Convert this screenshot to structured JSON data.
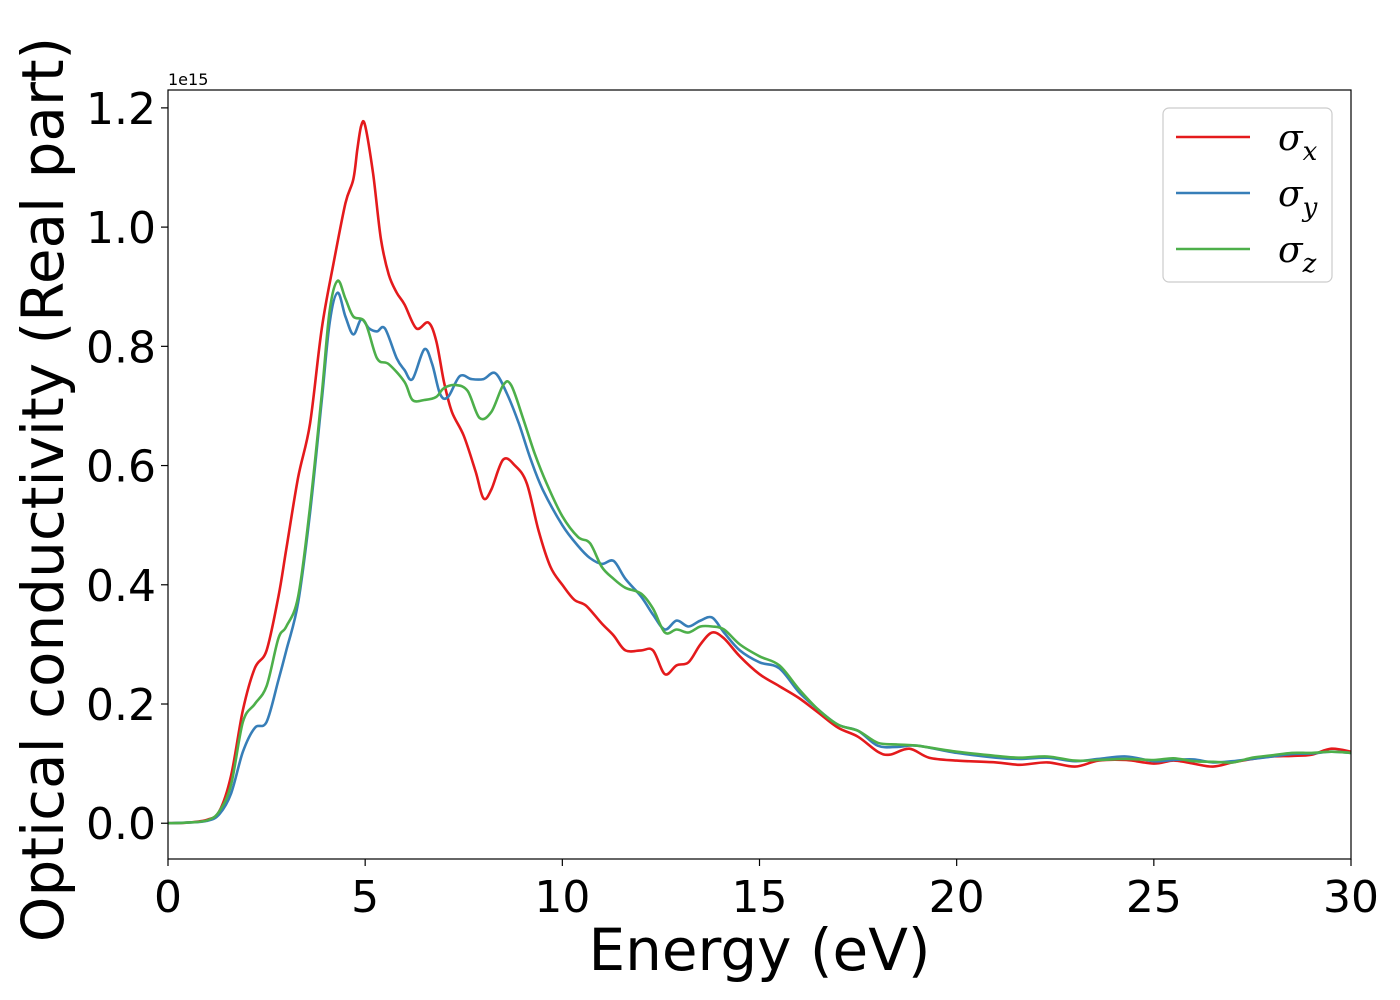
{
  "chart_data": {
    "type": "line",
    "xlabel": "Energy (eV)",
    "ylabel": "Optical conductivity (Real part)",
    "y_offset_text": "1e15",
    "xlim": [
      0,
      30
    ],
    "ylim": [
      -0.06,
      1.23
    ],
    "x_ticks": [
      0,
      5,
      10,
      15,
      20,
      25,
      30
    ],
    "x_tick_labels": [
      "0",
      "5",
      "10",
      "15",
      "20",
      "25",
      "30"
    ],
    "y_ticks": [
      0.0,
      0.2,
      0.4,
      0.6,
      0.8,
      1.0,
      1.2
    ],
    "y_tick_labels": [
      "0.0",
      "0.2",
      "0.4",
      "0.6",
      "0.8",
      "1.0",
      "1.2"
    ],
    "grid": false,
    "legend_position": "top-right",
    "series": [
      {
        "name": "σ_x",
        "legend_base": "σ",
        "legend_sub": "x",
        "color": "#e41a1c",
        "points": [
          [
            0,
            0
          ],
          [
            0.5,
            0.001
          ],
          [
            1.0,
            0.006
          ],
          [
            1.3,
            0.02
          ],
          [
            1.6,
            0.08
          ],
          [
            1.9,
            0.19
          ],
          [
            2.2,
            0.26
          ],
          [
            2.5,
            0.29
          ],
          [
            2.8,
            0.38
          ],
          [
            3.0,
            0.46
          ],
          [
            3.3,
            0.58
          ],
          [
            3.6,
            0.67
          ],
          [
            3.9,
            0.83
          ],
          [
            4.2,
            0.94
          ],
          [
            4.5,
            1.04
          ],
          [
            4.7,
            1.08
          ],
          [
            4.8,
            1.13
          ],
          [
            4.9,
            1.17
          ],
          [
            5.0,
            1.17
          ],
          [
            5.2,
            1.09
          ],
          [
            5.4,
            0.98
          ],
          [
            5.6,
            0.92
          ],
          [
            5.8,
            0.89
          ],
          [
            6.0,
            0.87
          ],
          [
            6.3,
            0.83
          ],
          [
            6.6,
            0.84
          ],
          [
            6.8,
            0.81
          ],
          [
            7.0,
            0.74
          ],
          [
            7.2,
            0.69
          ],
          [
            7.5,
            0.65
          ],
          [
            7.8,
            0.59
          ],
          [
            8.0,
            0.545
          ],
          [
            8.2,
            0.56
          ],
          [
            8.5,
            0.61
          ],
          [
            8.8,
            0.6
          ],
          [
            9.1,
            0.57
          ],
          [
            9.4,
            0.49
          ],
          [
            9.7,
            0.43
          ],
          [
            10.0,
            0.4
          ],
          [
            10.3,
            0.375
          ],
          [
            10.6,
            0.365
          ],
          [
            11.0,
            0.335
          ],
          [
            11.3,
            0.315
          ],
          [
            11.6,
            0.29
          ],
          [
            12.0,
            0.29
          ],
          [
            12.3,
            0.29
          ],
          [
            12.6,
            0.25
          ],
          [
            12.9,
            0.265
          ],
          [
            13.2,
            0.27
          ],
          [
            13.5,
            0.3
          ],
          [
            13.8,
            0.32
          ],
          [
            14.1,
            0.31
          ],
          [
            14.5,
            0.28
          ],
          [
            15.0,
            0.25
          ],
          [
            15.5,
            0.23
          ],
          [
            16.0,
            0.21
          ],
          [
            16.5,
            0.185
          ],
          [
            17.0,
            0.16
          ],
          [
            17.5,
            0.145
          ],
          [
            18.0,
            0.12
          ],
          [
            18.3,
            0.115
          ],
          [
            18.8,
            0.125
          ],
          [
            19.3,
            0.11
          ],
          [
            20.0,
            0.105
          ],
          [
            21.0,
            0.102
          ],
          [
            21.6,
            0.098
          ],
          [
            22.3,
            0.102
          ],
          [
            23.0,
            0.095
          ],
          [
            23.6,
            0.105
          ],
          [
            24.3,
            0.106
          ],
          [
            25.0,
            0.1
          ],
          [
            25.5,
            0.105
          ],
          [
            26.0,
            0.1
          ],
          [
            26.5,
            0.095
          ],
          [
            27.0,
            0.102
          ],
          [
            27.5,
            0.108
          ],
          [
            28.0,
            0.112
          ],
          [
            28.5,
            0.113
          ],
          [
            29.0,
            0.115
          ],
          [
            29.5,
            0.125
          ],
          [
            30.0,
            0.12
          ]
        ]
      },
      {
        "name": "σ_y",
        "legend_base": "σ",
        "legend_sub": "y",
        "color": "#377eb8",
        "points": [
          [
            0,
            0
          ],
          [
            0.5,
            0.001
          ],
          [
            1.0,
            0.004
          ],
          [
            1.3,
            0.015
          ],
          [
            1.6,
            0.05
          ],
          [
            1.9,
            0.12
          ],
          [
            2.2,
            0.16
          ],
          [
            2.5,
            0.17
          ],
          [
            2.8,
            0.24
          ],
          [
            3.0,
            0.29
          ],
          [
            3.3,
            0.37
          ],
          [
            3.6,
            0.52
          ],
          [
            3.9,
            0.71
          ],
          [
            4.1,
            0.84
          ],
          [
            4.3,
            0.89
          ],
          [
            4.5,
            0.85
          ],
          [
            4.7,
            0.82
          ],
          [
            4.9,
            0.845
          ],
          [
            5.1,
            0.83
          ],
          [
            5.3,
            0.825
          ],
          [
            5.5,
            0.83
          ],
          [
            5.8,
            0.78
          ],
          [
            6.0,
            0.76
          ],
          [
            6.2,
            0.745
          ],
          [
            6.5,
            0.795
          ],
          [
            6.7,
            0.77
          ],
          [
            6.9,
            0.72
          ],
          [
            7.1,
            0.715
          ],
          [
            7.4,
            0.75
          ],
          [
            7.7,
            0.745
          ],
          [
            8.0,
            0.745
          ],
          [
            8.3,
            0.755
          ],
          [
            8.6,
            0.72
          ],
          [
            8.9,
            0.67
          ],
          [
            9.2,
            0.61
          ],
          [
            9.5,
            0.56
          ],
          [
            10.0,
            0.5
          ],
          [
            10.4,
            0.465
          ],
          [
            10.7,
            0.445
          ],
          [
            11.0,
            0.435
          ],
          [
            11.3,
            0.44
          ],
          [
            11.6,
            0.41
          ],
          [
            12.0,
            0.38
          ],
          [
            12.3,
            0.35
          ],
          [
            12.6,
            0.325
          ],
          [
            12.9,
            0.34
          ],
          [
            13.2,
            0.33
          ],
          [
            13.5,
            0.34
          ],
          [
            13.8,
            0.345
          ],
          [
            14.1,
            0.32
          ],
          [
            14.5,
            0.29
          ],
          [
            15.0,
            0.27
          ],
          [
            15.5,
            0.26
          ],
          [
            16.0,
            0.22
          ],
          [
            16.5,
            0.19
          ],
          [
            17.0,
            0.165
          ],
          [
            17.5,
            0.155
          ],
          [
            18.0,
            0.13
          ],
          [
            18.5,
            0.128
          ],
          [
            19.0,
            0.13
          ],
          [
            20.0,
            0.118
          ],
          [
            21.0,
            0.11
          ],
          [
            21.6,
            0.108
          ],
          [
            22.3,
            0.11
          ],
          [
            23.0,
            0.104
          ],
          [
            23.6,
            0.108
          ],
          [
            24.3,
            0.112
          ],
          [
            25.0,
            0.104
          ],
          [
            25.5,
            0.106
          ],
          [
            26.0,
            0.107
          ],
          [
            26.5,
            0.102
          ],
          [
            27.0,
            0.104
          ],
          [
            27.5,
            0.108
          ],
          [
            28.0,
            0.112
          ],
          [
            28.5,
            0.116
          ],
          [
            29.0,
            0.117
          ],
          [
            29.5,
            0.12
          ],
          [
            30.0,
            0.118
          ]
        ]
      },
      {
        "name": "σ_z",
        "legend_base": "σ",
        "legend_sub": "z",
        "color": "#4daf4a",
        "points": [
          [
            0,
            0
          ],
          [
            0.5,
            0.001
          ],
          [
            1.0,
            0.005
          ],
          [
            1.3,
            0.02
          ],
          [
            1.6,
            0.065
          ],
          [
            1.9,
            0.17
          ],
          [
            2.2,
            0.2
          ],
          [
            2.5,
            0.23
          ],
          [
            2.8,
            0.31
          ],
          [
            3.0,
            0.33
          ],
          [
            3.3,
            0.38
          ],
          [
            3.6,
            0.53
          ],
          [
            3.9,
            0.72
          ],
          [
            4.1,
            0.86
          ],
          [
            4.3,
            0.91
          ],
          [
            4.5,
            0.88
          ],
          [
            4.7,
            0.85
          ],
          [
            5.0,
            0.84
          ],
          [
            5.3,
            0.78
          ],
          [
            5.6,
            0.77
          ],
          [
            6.0,
            0.74
          ],
          [
            6.2,
            0.71
          ],
          [
            6.5,
            0.71
          ],
          [
            6.8,
            0.715
          ],
          [
            7.0,
            0.73
          ],
          [
            7.3,
            0.735
          ],
          [
            7.6,
            0.725
          ],
          [
            7.9,
            0.68
          ],
          [
            8.2,
            0.69
          ],
          [
            8.5,
            0.735
          ],
          [
            8.7,
            0.735
          ],
          [
            9.0,
            0.68
          ],
          [
            9.3,
            0.62
          ],
          [
            9.6,
            0.57
          ],
          [
            10.0,
            0.515
          ],
          [
            10.4,
            0.48
          ],
          [
            10.7,
            0.47
          ],
          [
            11.0,
            0.43
          ],
          [
            11.3,
            0.41
          ],
          [
            11.6,
            0.395
          ],
          [
            12.0,
            0.385
          ],
          [
            12.3,
            0.36
          ],
          [
            12.6,
            0.32
          ],
          [
            12.9,
            0.325
          ],
          [
            13.2,
            0.32
          ],
          [
            13.5,
            0.33
          ],
          [
            13.8,
            0.33
          ],
          [
            14.1,
            0.325
          ],
          [
            14.5,
            0.3
          ],
          [
            15.0,
            0.28
          ],
          [
            15.5,
            0.265
          ],
          [
            16.0,
            0.225
          ],
          [
            16.5,
            0.19
          ],
          [
            17.0,
            0.165
          ],
          [
            17.5,
            0.155
          ],
          [
            18.0,
            0.135
          ],
          [
            18.5,
            0.132
          ],
          [
            19.0,
            0.13
          ],
          [
            20.0,
            0.12
          ],
          [
            21.0,
            0.113
          ],
          [
            21.6,
            0.11
          ],
          [
            22.3,
            0.112
          ],
          [
            23.0,
            0.105
          ],
          [
            23.6,
            0.106
          ],
          [
            24.3,
            0.108
          ],
          [
            25.0,
            0.106
          ],
          [
            25.5,
            0.109
          ],
          [
            26.0,
            0.104
          ],
          [
            26.5,
            0.103
          ],
          [
            27.0,
            0.102
          ],
          [
            27.5,
            0.11
          ],
          [
            28.0,
            0.114
          ],
          [
            28.5,
            0.118
          ],
          [
            29.0,
            0.118
          ],
          [
            29.5,
            0.12
          ],
          [
            30.0,
            0.118
          ]
        ]
      }
    ]
  }
}
